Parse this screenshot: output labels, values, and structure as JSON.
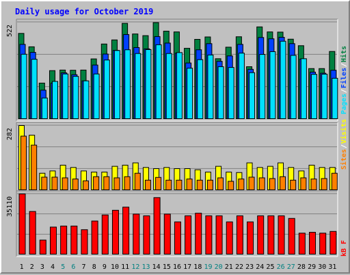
{
  "title": "Daily usage for October 2019",
  "colors": {
    "background": "#c0c0c0",
    "title": "#0000ff",
    "hits": "#008040",
    "files": "#0040ff",
    "pages": "#00e0ff",
    "visits": "#ffff00",
    "sites": "#ff8000",
    "kbytes": "#ff0000",
    "weekend_day_label": "#008080",
    "separator": "#ffffff"
  },
  "chart_data": [
    {
      "type": "bar",
      "panel": "hits",
      "ymax_label": "522",
      "ylim": [
        0,
        522
      ],
      "categories": [
        "1",
        "2",
        "3",
        "4",
        "5",
        "6",
        "7",
        "8",
        "9",
        "10",
        "11",
        "12",
        "13",
        "14",
        "15",
        "16",
        "17",
        "18",
        "19",
        "20",
        "21",
        "22",
        "23",
        "24",
        "25",
        "26",
        "27",
        "28",
        "29",
        "30",
        "31"
      ],
      "weekend_days": [
        "5",
        "6",
        "12",
        "13",
        "19",
        "20",
        "26",
        "27"
      ],
      "series": [
        {
          "name": "Hits",
          "values": [
            462,
            390,
            195,
            262,
            265,
            264,
            265,
            325,
            405,
            427,
            516,
            459,
            450,
            520,
            474,
            470,
            382,
            430,
            443,
            326,
            388,
            444,
            283,
            497,
            470,
            469,
            431,
            396,
            273,
            273,
            365
          ]
        },
        {
          "name": "Files",
          "values": [
            403,
            360,
            157,
            195,
            250,
            240,
            207,
            292,
            351,
            371,
            456,
            386,
            379,
            445,
            410,
            356,
            303,
            374,
            407,
            312,
            341,
            403,
            269,
            440,
            433,
            441,
            407,
            324,
            254,
            248,
            264
          ]
        },
        {
          "name": "Pages",
          "values": [
            350,
            323,
            115,
            204,
            244,
            231,
            207,
            244,
            319,
            370,
            374,
            354,
            375,
            401,
            354,
            359,
            275,
            321,
            346,
            283,
            279,
            356,
            251,
            349,
            364,
            420,
            344,
            326,
            242,
            243,
            221
          ]
        }
      ],
      "legend": [
        "Pages",
        "Files",
        "Hits"
      ]
    },
    {
      "type": "bar",
      "panel": "visits",
      "ymax_label": "282",
      "ylim": [
        0,
        282
      ],
      "categories": [
        "1",
        "2",
        "3",
        "4",
        "5",
        "6",
        "7",
        "8",
        "9",
        "10",
        "11",
        "12",
        "13",
        "14",
        "15",
        "16",
        "17",
        "18",
        "19",
        "20",
        "21",
        "22",
        "23",
        "24",
        "25",
        "26",
        "27",
        "28",
        "29",
        "30",
        "31"
      ],
      "series": [
        {
          "name": "Visits",
          "values": [
            282,
            240,
            75,
            85,
            110,
            100,
            85,
            80,
            80,
            105,
            110,
            120,
            100,
            95,
            100,
            95,
            95,
            90,
            80,
            105,
            80,
            78,
            120,
            100,
            105,
            120,
            100,
            85,
            110,
            100,
            100
          ]
        },
        {
          "name": "Sites",
          "values": [
            236,
            197,
            58,
            58,
            55,
            50,
            42,
            60,
            60,
            55,
            60,
            75,
            45,
            57,
            45,
            45,
            50,
            45,
            45,
            55,
            40,
            50,
            58,
            55,
            52,
            60,
            45,
            55,
            50,
            52,
            75
          ]
        }
      ],
      "legend": [
        "Sites",
        "Visits"
      ]
    },
    {
      "type": "bar",
      "panel": "kbytes",
      "ymax_label": "35110",
      "ylim": [
        0,
        35110
      ],
      "categories": [
        "1",
        "2",
        "3",
        "4",
        "5",
        "6",
        "7",
        "8",
        "9",
        "10",
        "11",
        "12",
        "13",
        "14",
        "15",
        "16",
        "17",
        "18",
        "19",
        "20",
        "21",
        "22",
        "23",
        "24",
        "25",
        "26",
        "27",
        "28",
        "29",
        "30",
        "31"
      ],
      "series": [
        {
          "name": "kB F",
          "values": [
            35110,
            25000,
            8500,
            16000,
            16600,
            16600,
            14500,
            19500,
            23000,
            25700,
            27500,
            23500,
            22500,
            33000,
            23500,
            19000,
            22500,
            24000,
            22500,
            22500,
            19000,
            22500,
            19000,
            22500,
            22500,
            22500,
            21000,
            12500,
            13000,
            12500,
            13500
          ]
        }
      ],
      "legend": [
        "kB F"
      ]
    }
  ]
}
